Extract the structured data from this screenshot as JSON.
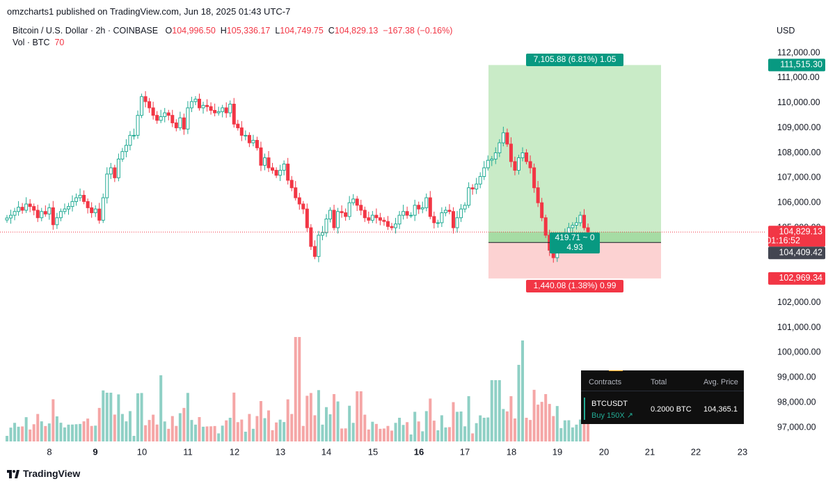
{
  "header": {
    "published_line": "omzcharts1 published on TradingView.com, Jun 18, 2025 01:43 UTC-7"
  },
  "legend": {
    "symbol": "Bitcoin / U.S. Dollar · 2h · COINBASE",
    "o_label": "O",
    "o_value": "104,996.50",
    "h_label": "H",
    "h_value": "105,336.17",
    "l_label": "L",
    "l_value": "104,749.75",
    "c_label": "C",
    "c_value": "104,829.13",
    "change": "−167.38 (−0.16%)",
    "vol_label": "Vol · BTC",
    "vol_value": "70"
  },
  "currency": "USD",
  "footer": {
    "brand": "TradingView"
  },
  "position_panel": {
    "headers": [
      "Contracts",
      "Total",
      "Avg. Price"
    ],
    "symbol": "BTCUSDT",
    "side": "Buy 150X",
    "total": "0.2000 BTC",
    "avg_price": "104,365.1"
  },
  "colors": {
    "up": "#22ab94",
    "down": "#f23645",
    "up_volume": "#8fd0c5",
    "down_volume": "#f5a6a6",
    "target_zone": "#c9ebc7",
    "stop_zone": "#fcd2d2",
    "target_label": "#089981",
    "stop_label": "#f23645",
    "panel_bg": "#0f0f0f"
  },
  "chart_data": {
    "type": "candlestick",
    "symbol": "Bitcoin / U.S. Dollar",
    "interval": "2h",
    "exchange": "COINBASE",
    "y_axis_ticks": [
      112000,
      111000,
      110000,
      109000,
      108000,
      107000,
      106000,
      105000,
      102000,
      101000,
      100000,
      99000,
      98000,
      97000
    ],
    "y_axis_tick_labels": [
      "112,000.00",
      "111,000.00",
      "110,000.00",
      "109,000.00",
      "108,000.00",
      "107,000.00",
      "106,000.00",
      "105,000.00",
      "102,000.00",
      "101,000.00",
      "100,000.00",
      "99,000.00",
      "98,000.00",
      "97,000.00"
    ],
    "ylim": [
      96500,
      112700
    ],
    "x_axis_labels": [
      "8",
      "9",
      "10",
      "11",
      "12",
      "13",
      "14",
      "15",
      "16",
      "17",
      "18",
      "19",
      "20",
      "21",
      "22",
      "23"
    ],
    "x_axis_bold": [
      "9",
      "16"
    ],
    "price_labels": {
      "take_profit": "111,515.30",
      "current": "104,829.13",
      "countdown": "01:16:52",
      "entry": "104,409.42",
      "stop_loss": "102,969.34"
    },
    "levels": {
      "take_profit": 111515.3,
      "current": 104829.13,
      "entry": 104409.42,
      "stop_loss": 102969.34
    },
    "long_position": {
      "target_text": "7,105.88 (6.81%) 1.05",
      "stop_text": "1,440.08 (1.38%) 0.99",
      "pnl_line1": "419.71 ~ 0",
      "pnl_line2": "4.93",
      "start_bar": 104,
      "end_bar": 142
    },
    "bars_per_day": 12,
    "first_day_index": 0,
    "candles_close": [
      105390,
      105500,
      105650,
      105820,
      105700,
      105950,
      105850,
      105700,
      105400,
      105650,
      105550,
      105800,
      105120,
      105400,
      105650,
      105750,
      105850,
      106050,
      106200,
      106300,
      106050,
      105800,
      105600,
      105750,
      105300,
      106200,
      107150,
      107400,
      107000,
      107750,
      108050,
      108300,
      108700,
      108700,
      109500,
      110250,
      110050,
      109800,
      109500,
      109300,
      109450,
      109600,
      109500,
      109200,
      109000,
      109400,
      108950,
      109800,
      110050,
      110150,
      109800,
      109900,
      109850,
      109700,
      109600,
      109650,
      109800,
      109600,
      109950,
      109150,
      109000,
      108700,
      108700,
      108400,
      108500,
      108200,
      107500,
      107800,
      107400,
      107300,
      107100,
      107300,
      107550,
      106900,
      106600,
      106200,
      105950,
      105750,
      105000,
      104250,
      103850,
      104700,
      104800,
      105350,
      105700,
      105000,
      105650,
      105600,
      105450,
      106000,
      106150,
      105900,
      105700,
      105400,
      105300,
      105500,
      105400,
      105300,
      105250,
      105050,
      105000,
      105150,
      105500,
      105650,
      105500,
      105500,
      105900,
      105750,
      105800,
      106200,
      105450,
      105200,
      105200,
      105600,
      105700,
      105650,
      105000,
      105400,
      105750,
      105900,
      106600,
      106550,
      106750,
      107050,
      107400,
      107700,
      107750,
      108000,
      108400,
      108800,
      108350,
      107650,
      107300,
      107800,
      108000,
      107650,
      107400,
      106600,
      106000,
      105400,
      104700,
      104100,
      103800,
      104400,
      104500,
      104700,
      105000,
      105100,
      105200,
      105500,
      105000,
      104830
    ],
    "volume": [
      null,
      null,
      null,
      null
    ]
  }
}
